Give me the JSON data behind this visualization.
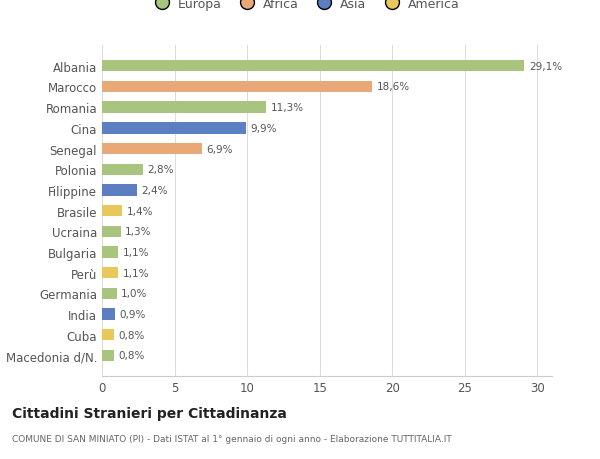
{
  "countries": [
    "Albania",
    "Marocco",
    "Romania",
    "Cina",
    "Senegal",
    "Polonia",
    "Filippine",
    "Brasile",
    "Ucraina",
    "Bulgaria",
    "Perù",
    "Germania",
    "India",
    "Cuba",
    "Macedonia d/N."
  ],
  "values": [
    29.1,
    18.6,
    11.3,
    9.9,
    6.9,
    2.8,
    2.4,
    1.4,
    1.3,
    1.1,
    1.1,
    1.0,
    0.9,
    0.8,
    0.8
  ],
  "labels": [
    "29,1%",
    "18,6%",
    "11,3%",
    "9,9%",
    "6,9%",
    "2,8%",
    "2,4%",
    "1,4%",
    "1,3%",
    "1,1%",
    "1,1%",
    "1,0%",
    "0,9%",
    "0,8%",
    "0,8%"
  ],
  "continents": [
    "Europa",
    "Africa",
    "Europa",
    "Asia",
    "Africa",
    "Europa",
    "Asia",
    "America",
    "Europa",
    "Europa",
    "America",
    "Europa",
    "Asia",
    "America",
    "Europa"
  ],
  "continent_colors": {
    "Europa": "#a8c47e",
    "Africa": "#e8a878",
    "Asia": "#5b7fc0",
    "America": "#e8c85a"
  },
  "legend_order": [
    "Europa",
    "Africa",
    "Asia",
    "America"
  ],
  "title": "Cittadini Stranieri per Cittadinanza",
  "subtitle": "COMUNE DI SAN MINIATO (PI) - Dati ISTAT al 1° gennaio di ogni anno - Elaborazione TUTTITALIA.IT",
  "xlim": [
    0,
    31
  ],
  "xticks": [
    0,
    5,
    10,
    15,
    20,
    25,
    30
  ],
  "bg_color": "#ffffff",
  "grid_color": "#dddddd",
  "bar_height": 0.55
}
